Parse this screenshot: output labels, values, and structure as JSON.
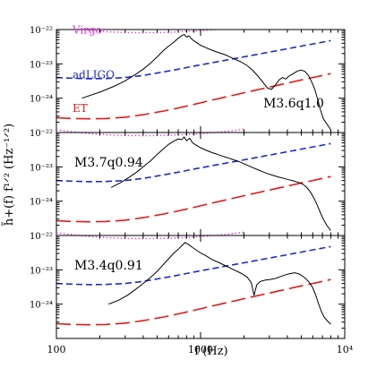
{
  "chart_data": {
    "type": "line",
    "xlabel": "f (Hz)",
    "ylabel": "h̃+(f) f^1/2 (Hz^-1/2)",
    "xscale": "log",
    "yscale": "log",
    "xlim": [
      100,
      10000
    ],
    "ylim": [
      1e-25,
      1e-22
    ],
    "x_ticks": [
      {
        "value": 100,
        "label": "100"
      },
      {
        "value": 1000,
        "label": "1000"
      },
      {
        "value": 10000,
        "label": "10⁴"
      }
    ],
    "y_ticks": [
      {
        "value": 1e-22,
        "label": "10⁻²²"
      },
      {
        "value": 1e-23,
        "label": "10⁻²³"
      },
      {
        "value": 1e-24,
        "label": "10⁻²⁴"
      }
    ],
    "detector_labels": {
      "virgo": "Virgo",
      "adligo": "adLIGO",
      "et": "ET"
    },
    "colors": {
      "virgo": "#e040e0",
      "adligo": "#1e2ad0",
      "et": "#e01818",
      "signal": "#000000"
    },
    "detectors": {
      "virgo": {
        "x": [
          100,
          130,
          170,
          220,
          300,
          400,
          550,
          700,
          900,
          1200,
          1600,
          2000
        ],
        "y": [
          1.2e-22,
          1.05e-22,
          9.3e-23,
          8.6e-23,
          8.2e-23,
          8.1e-23,
          8.2e-23,
          8.5e-23,
          9e-23,
          9.8e-23,
          1.1e-22,
          1.25e-22
        ]
      },
      "adligo": {
        "x": [
          100,
          130,
          170,
          220,
          300,
          400,
          550,
          700,
          900,
          1200,
          1600,
          2000,
          3000,
          4000,
          5000,
          6000,
          7000,
          8000
        ],
        "y": [
          4e-24,
          3.8e-24,
          3.7e-24,
          3.75e-24,
          4e-24,
          4.6e-24,
          5.8e-24,
          7e-24,
          8.6e-24,
          1.08e-23,
          1.35e-23,
          1.6e-23,
          2.2e-23,
          2.75e-23,
          3.3e-23,
          3.8e-23,
          4.3e-23,
          4.75e-23
        ]
      },
      "et": {
        "x": [
          100,
          130,
          170,
          220,
          300,
          400,
          550,
          700,
          900,
          1200,
          1600,
          2000,
          3000,
          4000,
          5000,
          6000,
          7000,
          8000
        ],
        "y": [
          2.7e-25,
          2.55e-25,
          2.5e-25,
          2.55e-25,
          2.8e-25,
          3.3e-25,
          4.2e-25,
          5.2e-25,
          6.6e-25,
          8.8e-25,
          1.16e-24,
          1.44e-24,
          2.1e-24,
          2.75e-24,
          3.4e-24,
          4e-24,
          4.6e-24,
          5.2e-24
        ]
      }
    },
    "panels": [
      {
        "label": "M3.6q1.0",
        "label_pos": "right",
        "signal": {
          "x": [
            150,
            200,
            250,
            300,
            350,
            400,
            450,
            500,
            550,
            600,
            650,
            700,
            740,
            770,
            800,
            830,
            870,
            920,
            1000,
            1100,
            1200,
            1350,
            1500,
            1700,
            1900,
            2100,
            2300,
            2500,
            2700,
            2900,
            3100,
            3300,
            3500,
            3700,
            3900,
            4100,
            4400,
            4700,
            5000,
            5300,
            5600,
            5900,
            6200,
            6500,
            6800,
            7100,
            7500,
            8000
          ],
          "y": [
            1e-24,
            1.5e-24,
            2.2e-24,
            3.2e-24,
            4.8e-24,
            7e-24,
            1.05e-23,
            1.6e-23,
            2.4e-23,
            3.3e-23,
            4.2e-23,
            5.6e-23,
            6.6e-23,
            7.2e-23,
            6e-23,
            6.6e-23,
            5.2e-23,
            4.4e-23,
            3.5e-23,
            2.9e-23,
            2.5e-23,
            2.1e-23,
            1.8e-23,
            1.4e-23,
            1.15e-23,
            9e-24,
            6.5e-24,
            4.4e-24,
            3e-24,
            2e-24,
            1.8e-24,
            2.4e-24,
            3.4e-24,
            4e-24,
            3.6e-24,
            4.4e-24,
            5.2e-24,
            6.2e-24,
            6.6e-24,
            6e-24,
            4.6e-24,
            3e-24,
            1.8e-24,
            9e-25,
            4.5e-25,
            2.5e-25,
            1.8e-25,
            1.2e-25
          ]
        }
      },
      {
        "label": "M3.7q0.94",
        "label_pos": "left",
        "signal": {
          "x": [
            240,
            280,
            320,
            360,
            400,
            450,
            500,
            550,
            600,
            650,
            700,
            740,
            770,
            800,
            840,
            880,
            940,
            1000,
            1100,
            1200,
            1350,
            1500,
            1700,
            1900,
            2100,
            2300,
            2500,
            2700,
            2900,
            3200,
            3500,
            3800,
            4100,
            4400,
            4700,
            5000,
            5300,
            5600,
            5900,
            6200,
            6500,
            6800,
            7100,
            7500,
            8000
          ],
          "y": [
            2.5e-24,
            3.5e-24,
            5e-24,
            7e-24,
            1e-23,
            1.5e-23,
            2.3e-23,
            3.3e-23,
            4.5e-23,
            5.6e-23,
            6.5e-23,
            6.2e-23,
            7.4e-23,
            5.8e-23,
            6.8e-23,
            5e-23,
            4.2e-23,
            3.6e-23,
            3e-23,
            2.6e-23,
            2.2e-23,
            1.9e-23,
            1.6e-23,
            1.35e-23,
            1.12e-23,
            9.5e-24,
            8.2e-24,
            7.2e-24,
            6.4e-24,
            5.6e-24,
            5e-24,
            4.6e-24,
            4.2e-24,
            3.9e-24,
            3.6e-24,
            3.3e-24,
            2.8e-24,
            2.2e-24,
            1.6e-24,
            1.1e-24,
            7e-25,
            4.5e-25,
            3e-25,
            2e-25,
            1.4e-25
          ]
        }
      },
      {
        "label": "M3.4q0.91",
        "label_pos": "left",
        "signal": {
          "x": [
            230,
            270,
            310,
            350,
            400,
            450,
            500,
            550,
            600,
            650,
            700,
            740,
            780,
            820,
            870,
            930,
            1000,
            1100,
            1200,
            1350,
            1500,
            1700,
            1900,
            2100,
            2250,
            2350,
            2450,
            2600,
            2800,
            3000,
            3300,
            3600,
            3900,
            4200,
            4500,
            4800,
            5100,
            5400,
            5700,
            6000,
            6300,
            6600,
            6900,
            7200,
            7600,
            8000
          ],
          "y": [
            1e-24,
            1.3e-24,
            1.8e-24,
            2.6e-24,
            4e-24,
            6e-24,
            9e-24,
            1.4e-23,
            2.1e-23,
            3e-23,
            4e-23,
            5e-23,
            6.2e-23,
            5.6e-23,
            4.6e-23,
            3.8e-23,
            3.1e-23,
            2.5e-23,
            2e-23,
            1.6e-23,
            1.3e-23,
            1e-23,
            8e-24,
            6.2e-24,
            4.2e-24,
            1.8e-24,
            3.6e-24,
            4.6e-24,
            5e-24,
            5.2e-24,
            5.6e-24,
            6.4e-24,
            7.2e-24,
            7.8e-24,
            8.2e-24,
            7.6e-24,
            6.6e-24,
            5.4e-24,
            4.2e-24,
            3e-24,
            1.8e-24,
            1e-24,
            6e-25,
            4.2e-25,
            3.2e-25,
            2.6e-25
          ]
        }
      }
    ]
  }
}
